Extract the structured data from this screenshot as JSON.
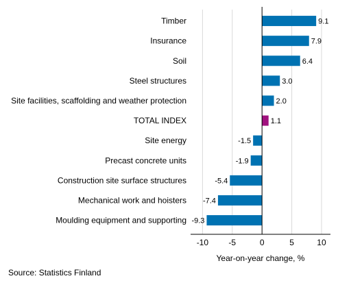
{
  "chart_data": {
    "type": "bar",
    "orientation": "horizontal",
    "categories": [
      "Timber",
      "Insurance",
      "Soil",
      "Steel structures",
      "Site facilities, scaffolding and weather protection",
      "TOTAL INDEX",
      "Site energy",
      "Precast concrete units",
      "Construction site surface structures",
      "Mechanical work and hoisters",
      "Moulding equipment and supporting"
    ],
    "values": [
      9.1,
      7.9,
      6.4,
      3.0,
      2.0,
      1.1,
      -1.5,
      -1.9,
      -5.4,
      -7.4,
      -9.3
    ],
    "value_labels": [
      "9.1",
      "7.9",
      "6.4",
      "3.0",
      "2.0",
      "1.1",
      "-1.5",
      "-1.9",
      "-5.4",
      "-7.4",
      "-9.3"
    ],
    "highlight_index": 5,
    "xlabel": "Year-on-year change, %",
    "xlim": [
      -12,
      11.5
    ],
    "xticks": [
      -10,
      -5,
      0,
      5,
      10
    ],
    "grid": true,
    "colors": {
      "bar": "#0072b2",
      "highlight": "#a0117e",
      "grid": "#d9d9d9",
      "axis": "#000000"
    }
  },
  "source": "Source: Statistics Finland"
}
